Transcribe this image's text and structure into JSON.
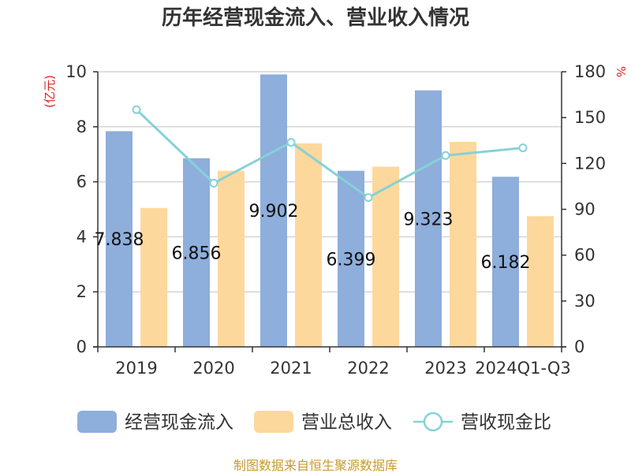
{
  "chart_data": {
    "type": "bar",
    "title": "历年经营现金流入、营业收入情况",
    "categories": [
      "2019",
      "2020",
      "2021",
      "2022",
      "2023",
      "2024Q1-Q3"
    ],
    "series": [
      {
        "name": "经营现金流入",
        "kind": "bar",
        "axis": "left",
        "color": "#8eaedb",
        "values": [
          7.838,
          6.856,
          9.902,
          6.399,
          9.323,
          6.182
        ],
        "labels": [
          "7.838",
          "6.856",
          "9.902",
          "6.399",
          "9.323",
          "6.182"
        ]
      },
      {
        "name": "营业总收入",
        "kind": "bar",
        "axis": "left",
        "color": "#fdd89c",
        "values": [
          5.05,
          6.4,
          7.4,
          6.55,
          7.45,
          4.75
        ]
      },
      {
        "name": "营收现金比",
        "kind": "line",
        "axis": "right",
        "color": "#86d2d6",
        "values": [
          155.2,
          107.1,
          133.8,
          97.7,
          125.2,
          130.2
        ]
      }
    ],
    "y_left": {
      "unit": "(亿元)",
      "min": 0,
      "max": 10,
      "ticks": [
        0,
        2,
        4,
        6,
        8,
        10
      ]
    },
    "y_right": {
      "unit": "%",
      "min": 0,
      "max": 180,
      "ticks": [
        0,
        30,
        60,
        90,
        120,
        150,
        180
      ]
    },
    "grid": true,
    "legend_position": "bottom",
    "source": "制图数据来自恒生聚源数据库"
  }
}
